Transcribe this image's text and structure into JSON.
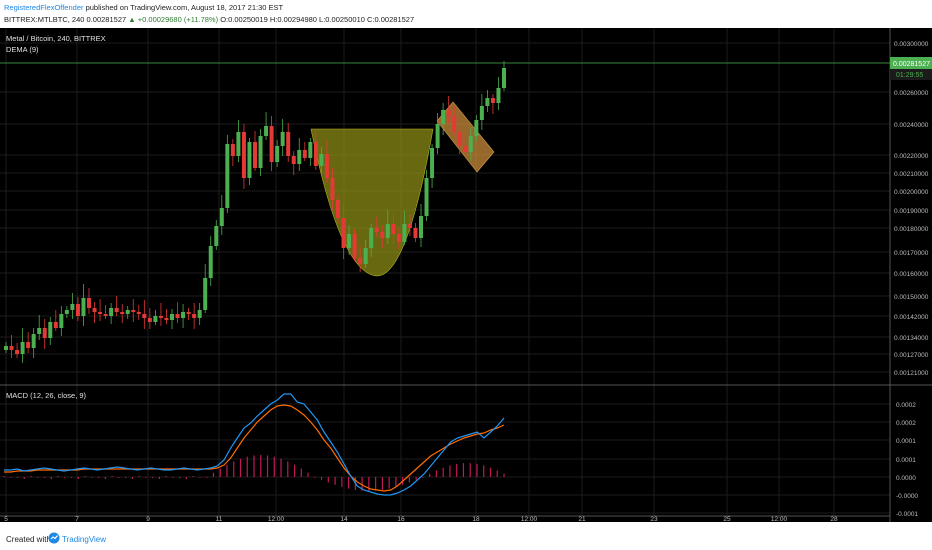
{
  "header": {
    "author": "RegisteredFlexOffender",
    "published": "published on TradingView.com, August 18, 2017 21:30 EST",
    "symbol_line": "BITTREX:MTLBTC, 240",
    "price": "0.00281527",
    "change": "▲ +0.00029680 (+11.78%)",
    "ohlc": "O:0.00250019 H:0.00294980 L:0.00250010 C:0.00281527"
  },
  "legend": {
    "symbol": "Metal / Bitcoin, 240, BITTREX",
    "indicator": "DEMA (9)",
    "macd": "MACD (12, 26, close, 9)"
  },
  "price_axis": {
    "labels": [
      "0.00300000",
      "0.00260000",
      "0.00240000",
      "0.00220000",
      "0.00210000",
      "0.00200000",
      "0.00190000",
      "0.00180000",
      "0.00170000",
      "0.00160000",
      "0.00150000",
      "0.00142000",
      "0.00134000",
      "0.00127000",
      "0.00121000"
    ],
    "last_price": "0.00281527",
    "countdown": "01:29:55"
  },
  "macd_axis": {
    "labels": [
      "0.0002",
      "0.0002",
      "0.0001",
      "0.0001",
      "0.0000",
      "-0.0000",
      "-0.0001"
    ]
  },
  "time_axis": {
    "labels": [
      "5",
      "7",
      "9",
      "11",
      "12:00",
      "14",
      "16",
      "18",
      "12:00",
      "21",
      "23",
      "25",
      "12:00",
      "28"
    ]
  },
  "colors": {
    "bull": "#4caf50",
    "bear": "#e53935",
    "macd_line": "#2196f3",
    "signal_line": "#ff6d00",
    "histogram": "#c2185b",
    "pattern_fill": "#8b8b17",
    "flag_fill": "#c98b3a"
  },
  "footer": {
    "created_with": "Created with",
    "brand": "TradingView"
  }
}
